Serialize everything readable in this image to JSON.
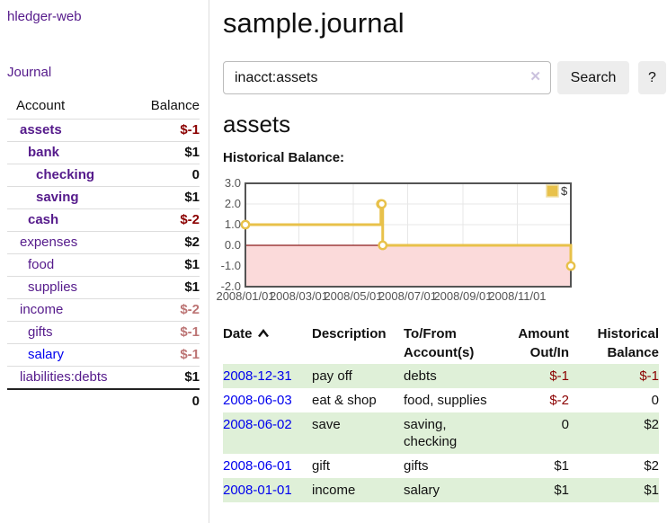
{
  "app": {
    "brand": "hledger-web",
    "nav_journal": "Journal"
  },
  "sidebar": {
    "headers": {
      "account": "Account",
      "balance": "Balance"
    },
    "accounts": [
      {
        "name": "assets",
        "balance": "$-1",
        "depth": 0,
        "bold": true,
        "unvisited": false
      },
      {
        "name": "bank",
        "balance": "$1",
        "depth": 1,
        "bold": true,
        "unvisited": false
      },
      {
        "name": "checking",
        "balance": "0",
        "depth": 2,
        "bold": true,
        "unvisited": false
      },
      {
        "name": "saving",
        "balance": "$1",
        "depth": 2,
        "bold": true,
        "unvisited": false
      },
      {
        "name": "cash",
        "balance": "$-2",
        "depth": 1,
        "bold": true,
        "unvisited": false
      },
      {
        "name": "expenses",
        "balance": "$2",
        "depth": 0,
        "bold": false,
        "unvisited": false
      },
      {
        "name": "food",
        "balance": "$1",
        "depth": 1,
        "bold": false,
        "unvisited": false
      },
      {
        "name": "supplies",
        "balance": "$1",
        "depth": 1,
        "bold": false,
        "unvisited": false
      },
      {
        "name": "income",
        "balance": "$-2",
        "depth": 0,
        "bold": false,
        "unvisited": false
      },
      {
        "name": "gifts",
        "balance": "$-1",
        "depth": 1,
        "bold": false,
        "unvisited": false
      },
      {
        "name": "salary",
        "balance": "$-1",
        "depth": 1,
        "bold": false,
        "unvisited": true
      },
      {
        "name": "liabilities:debts",
        "balance": "$1",
        "depth": 0,
        "bold": false,
        "unvisited": false
      }
    ],
    "total": "0"
  },
  "header": {
    "title": "sample.journal"
  },
  "search": {
    "value": "inacct:assets",
    "clear_glyph": "✕",
    "button_label": "Search",
    "help_label": "?"
  },
  "account_page": {
    "title": "assets",
    "chart_title": "Historical Balance:"
  },
  "chart_data": {
    "type": "line",
    "step": true,
    "title": "Historical Balance:",
    "x_start": "2008-01-01",
    "x_span_days": 365,
    "ylim": [
      -2,
      3
    ],
    "y_ticks": [
      {
        "v": 3,
        "label": "3.0"
      },
      {
        "v": 2,
        "label": "2.0"
      },
      {
        "v": 1,
        "label": "1.0"
      },
      {
        "v": 0,
        "label": "0.0"
      },
      {
        "v": -1,
        "label": "-1.0"
      },
      {
        "v": -2,
        "label": "-2.0"
      }
    ],
    "x_ticks": [
      {
        "date": "2008-01-01",
        "label": "2008/01/01"
      },
      {
        "date": "2008-03-01",
        "label": "2008/03/01"
      },
      {
        "date": "2008-05-01",
        "label": "2008/05/01"
      },
      {
        "date": "2008-07-01",
        "label": "2008/07/01"
      },
      {
        "date": "2008-09-01",
        "label": "2008/09/01"
      },
      {
        "date": "2008-11-01",
        "label": "2008/11/01"
      }
    ],
    "series": [
      {
        "name": "$",
        "color": "#e8c14a",
        "points": [
          {
            "date": "2008-01-01",
            "value": 1
          },
          {
            "date": "2008-06-01",
            "value": 2
          },
          {
            "date": "2008-06-02",
            "value": 2
          },
          {
            "date": "2008-06-03",
            "value": 0
          },
          {
            "date": "2008-12-31",
            "value": -1
          }
        ]
      }
    ],
    "legend": {
      "label": "$",
      "position": "top-right"
    },
    "grid_on": true,
    "colors": {
      "negative_fill": "#fbdada",
      "zero_line": "#8b1a1a",
      "grid": "#e7e7e7",
      "border": "#545454",
      "tick_text": "#545454"
    }
  },
  "register": {
    "headers": [
      {
        "label": "Date"
      },
      {
        "label": "Description"
      },
      {
        "label": "To/From Account(s)"
      },
      {
        "label": "Amount Out/In"
      },
      {
        "label": "Historical Balance"
      }
    ],
    "rows": [
      {
        "date": "2008-12-31",
        "description": "pay off",
        "accounts": "debts",
        "amount": "$-1",
        "balance": "$-1"
      },
      {
        "date": "2008-06-03",
        "description": "eat & shop",
        "accounts": "food, supplies",
        "amount": "$-2",
        "balance": "0"
      },
      {
        "date": "2008-06-02",
        "description": "save",
        "accounts": "saving, checking",
        "amount": "0",
        "balance": "$2"
      },
      {
        "date": "2008-06-01",
        "description": "gift",
        "accounts": "gifts",
        "amount": "$1",
        "balance": "$2"
      },
      {
        "date": "2008-01-01",
        "description": "income",
        "accounts": "salary",
        "amount": "$1",
        "balance": "$1"
      }
    ]
  }
}
